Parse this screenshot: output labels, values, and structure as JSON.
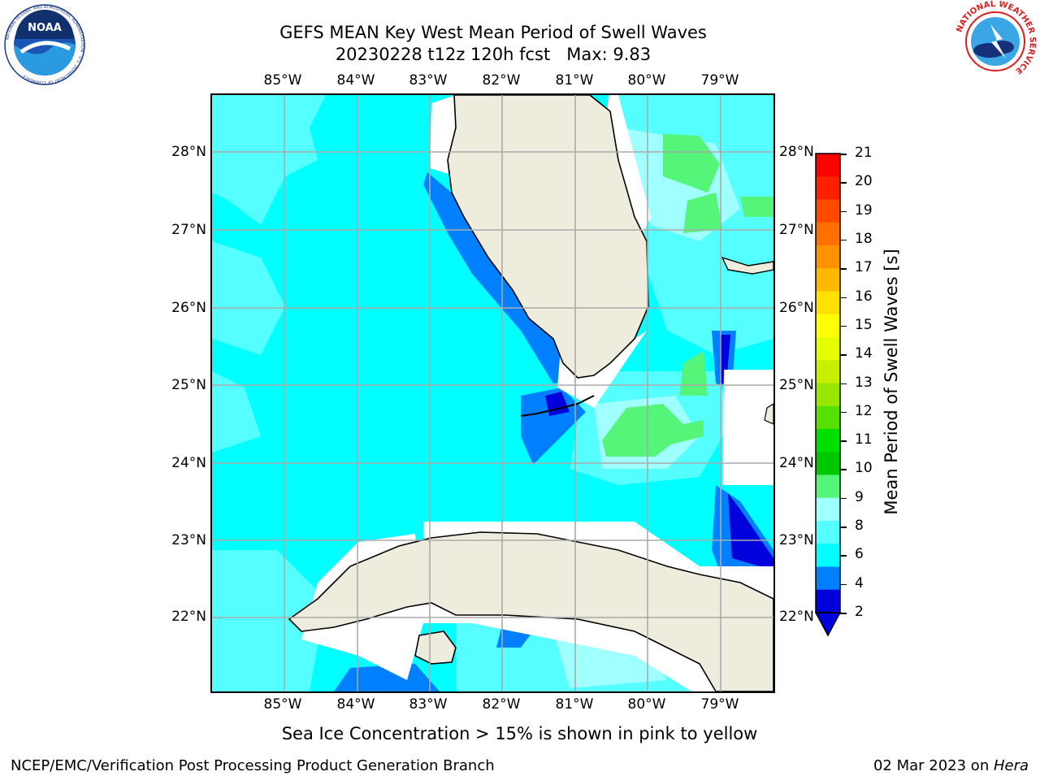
{
  "title": {
    "line1": "GEFS MEAN Key West Mean Period of Swell Waves",
    "line2": "20230228 t12z 120h fcst   Max: 9.83"
  },
  "logos": {
    "left": {
      "text": "NOAA",
      "ring_text": "NATIONAL OCEANIC AND ATMOSPHERIC ADMINISTRATION · U.S. DEPARTMENT OF COMMERCE",
      "icon": "noaa-logo"
    },
    "right": {
      "ring_text": "NATIONAL WEATHER SERVICE",
      "icon": "nws-logo"
    }
  },
  "map": {
    "lon_ticks": [
      "85°W",
      "84°W",
      "83°W",
      "82°W",
      "81°W",
      "80°W",
      "79°W"
    ],
    "lat_ticks": [
      "28°N",
      "27°N",
      "26°N",
      "25°N",
      "24°N",
      "23°N",
      "22°N"
    ],
    "colors": {
      "land": "#eeecdc",
      "grid": "#aaaaaa",
      "ocean_base": "#00ffff"
    }
  },
  "colorbar": {
    "label": "Mean Period of Swell Waves [s]",
    "ticks": [
      "21",
      "20",
      "19",
      "18",
      "17",
      "16",
      "15",
      "14",
      "13",
      "12",
      "11",
      "10",
      "9",
      "8",
      "6",
      "4",
      "2"
    ],
    "colors": [
      "#ff0000",
      "#ff2000",
      "#ff4a00",
      "#ff7000",
      "#ff9000",
      "#ffb800",
      "#ffe000",
      "#ffff00",
      "#e6ff00",
      "#c8ef00",
      "#9ae600",
      "#55e000",
      "#00e000",
      "#00c800",
      "#55f57a",
      "#a0ffff",
      "#55ffff",
      "#00ffff",
      "#0080ff",
      "#0000dd"
    ]
  },
  "footnote": "Sea Ice Concentration > 15% is shown in pink to yellow",
  "credit": "NCEP/EMC/Verification Post Processing Product Generation Branch",
  "date_stamp": {
    "date": "02 Mar 2023 on ",
    "machine": "Hera"
  }
}
